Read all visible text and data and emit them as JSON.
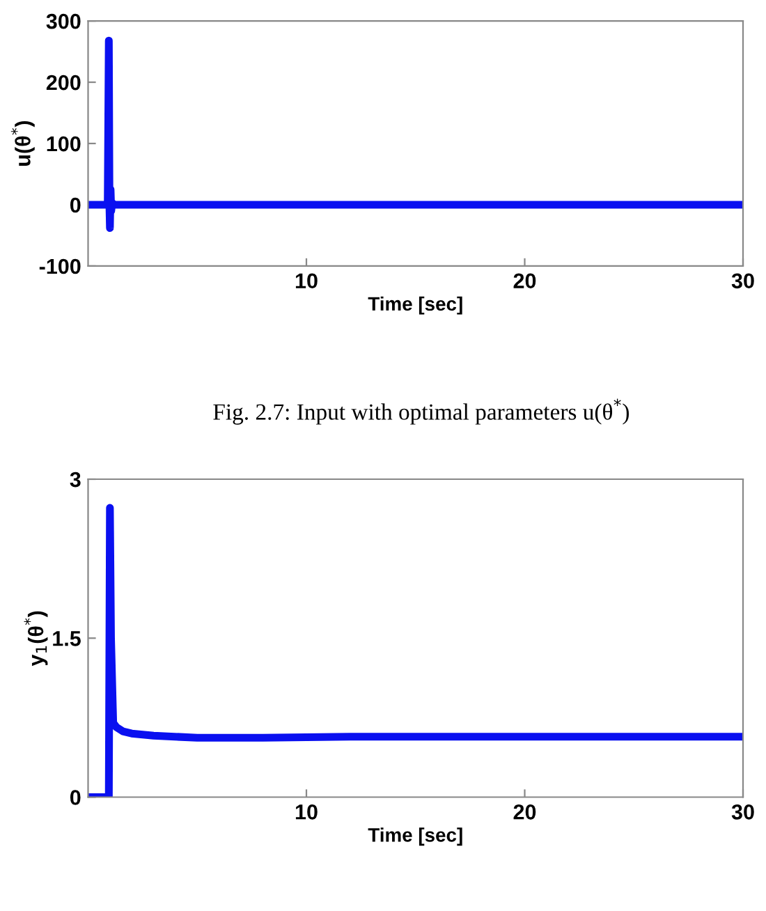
{
  "chart_data": [
    {
      "type": "line",
      "xlabel": "Time [sec]",
      "ylabel": "u(θ$^{*}$)",
      "annotations": [
        "Fig. 2.7: Input with optimal parameters u(θ$^{*}$)"
      ],
      "xlim": [
        0,
        30
      ],
      "xticks": [
        10,
        20,
        30
      ],
      "ylim": [
        -100,
        300
      ],
      "yticks": [
        -100,
        0,
        100,
        200,
        300
      ],
      "grid": false,
      "marker": "none",
      "line_style": "solid",
      "series": [
        {
          "color": "#0a10f0",
          "x": [
            0,
            0.9,
            0.95,
            0.98,
            1.0,
            1.03,
            1.06,
            1.1,
            1.2,
            30
          ],
          "values": [
            0,
            0,
            268,
            -5,
            -38,
            25,
            -10,
            3,
            0,
            0
          ]
        }
      ]
    },
    {
      "type": "line",
      "xlabel": "Time [sec]",
      "ylabel": "y$_{1}$(θ$^{*}$)",
      "xlim": [
        0,
        30
      ],
      "xticks": [
        10,
        20,
        30
      ],
      "ylim": [
        0,
        3
      ],
      "yticks": [
        0,
        1.5,
        3
      ],
      "grid": false,
      "marker": "none",
      "line_style": "solid",
      "series": [
        {
          "color": "#0a10f0",
          "x": [
            0,
            0.95,
            1.0,
            1.05,
            1.15,
            1.3,
            1.6,
            2,
            3,
            5,
            8,
            12,
            20,
            30
          ],
          "values": [
            0,
            0,
            2.73,
            1.5,
            0.7,
            0.66,
            0.62,
            0.6,
            0.58,
            0.56,
            0.56,
            0.57,
            0.57,
            0.57
          ]
        }
      ]
    }
  ]
}
